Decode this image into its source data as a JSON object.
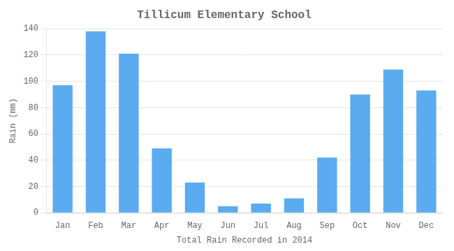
{
  "chart_data": {
    "type": "bar",
    "title": "Tillicum Elementary School",
    "xlabel": "Total Rain Recorded in 2014",
    "ylabel": "Rain (mm)",
    "categories": [
      "Jan",
      "Feb",
      "Mar",
      "Apr",
      "May",
      "Jun",
      "Jul",
      "Aug",
      "Sep",
      "Oct",
      "Nov",
      "Dec"
    ],
    "values": [
      97,
      138,
      121,
      49,
      23,
      5,
      7,
      11,
      42,
      90,
      109,
      93
    ],
    "color": "#5aabf0",
    "ylim": [
      0,
      140
    ],
    "yticks": [
      0,
      20,
      40,
      60,
      80,
      100,
      120,
      140
    ],
    "grid": true
  }
}
